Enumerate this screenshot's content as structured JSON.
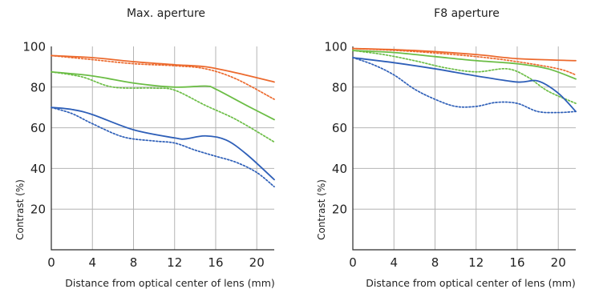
{
  "chart_data": [
    {
      "type": "line",
      "title": "Max. aperture",
      "xlabel": "Distance from optical center of lens (mm)",
      "ylabel": "Contrast (%)",
      "xlim": [
        0,
        21.7
      ],
      "ylim": [
        0,
        100
      ],
      "xticks": [
        "0",
        "4",
        "8",
        "12",
        "16",
        "20"
      ],
      "yticks": [
        "20",
        "40",
        "60",
        "80",
        "100"
      ],
      "grid": true,
      "series": [
        {
          "color": "#ec6a2e",
          "style": "solid",
          "x": [
            0,
            4,
            8,
            12,
            15,
            18,
            21.7
          ],
          "y": [
            95.5,
            94.5,
            92.5,
            91,
            90,
            87,
            82.5
          ]
        },
        {
          "color": "#ec6a2e",
          "style": "dotted",
          "x": [
            0,
            4,
            8,
            12,
            15,
            18,
            21.7
          ],
          "y": [
            95.5,
            93.5,
            91.5,
            90.5,
            89,
            84,
            74
          ]
        },
        {
          "color": "#6bbd45",
          "style": "solid",
          "x": [
            0,
            4,
            8,
            12,
            15,
            16,
            19,
            21.7
          ],
          "y": [
            87.5,
            85.5,
            82,
            80,
            80.5,
            79,
            71,
            64
          ]
        },
        {
          "color": "#6bbd45",
          "style": "dotted",
          "x": [
            0,
            3,
            6,
            10,
            12,
            15,
            18,
            21.7
          ],
          "y": [
            87.5,
            85,
            80,
            79.5,
            78.5,
            71,
            64,
            53
          ]
        },
        {
          "color": "#2e5fb8",
          "style": "solid",
          "x": [
            0,
            2,
            4,
            8,
            12,
            13,
            15,
            17,
            19,
            21.7
          ],
          "y": [
            70,
            69,
            66.5,
            59,
            55,
            54.5,
            56,
            54,
            47,
            34.5
          ]
        },
        {
          "color": "#2e5fb8",
          "style": "dotted",
          "x": [
            0,
            2,
            4,
            7,
            10,
            12,
            14,
            16,
            18,
            20,
            21.7
          ],
          "y": [
            70,
            67,
            62,
            55.5,
            53.5,
            52.5,
            49,
            46,
            43,
            38,
            31
          ]
        }
      ]
    },
    {
      "type": "line",
      "title": "F8 aperture",
      "xlabel": "Distance from optical center of lens (mm)",
      "ylabel": "Contrast (%)",
      "xlim": [
        0,
        21.7
      ],
      "ylim": [
        0,
        100
      ],
      "xticks": [
        "0",
        "4",
        "8",
        "12",
        "16",
        "20"
      ],
      "yticks": [
        "20",
        "40",
        "60",
        "80",
        "100"
      ],
      "grid": true,
      "series": [
        {
          "color": "#ec6a2e",
          "style": "solid",
          "x": [
            0,
            6,
            12,
            16,
            21.7
          ],
          "y": [
            99,
            98,
            96,
            94,
            93
          ]
        },
        {
          "color": "#ec6a2e",
          "style": "dotted",
          "x": [
            0,
            6,
            12,
            16,
            20,
            21.7
          ],
          "y": [
            99,
            97.5,
            95,
            92.5,
            89,
            86
          ]
        },
        {
          "color": "#6bbd45",
          "style": "solid",
          "x": [
            0,
            4,
            8,
            12,
            16,
            19,
            21.7
          ],
          "y": [
            98,
            97,
            95,
            93,
            91.5,
            89,
            84
          ]
        },
        {
          "color": "#6bbd45",
          "style": "dotted",
          "x": [
            0,
            3,
            6,
            9,
            12,
            15,
            17,
            19,
            21.7
          ],
          "y": [
            98,
            96,
            93,
            89.5,
            87.5,
            89,
            85,
            78,
            72
          ]
        },
        {
          "color": "#2e5fb8",
          "style": "solid",
          "x": [
            0,
            4,
            8,
            12,
            16,
            18,
            20,
            21.7
          ],
          "y": [
            94.5,
            92,
            89,
            85.5,
            82.5,
            83,
            77,
            68
          ]
        },
        {
          "color": "#2e5fb8",
          "style": "dotted",
          "x": [
            0,
            2,
            4,
            6,
            8,
            10,
            12,
            14,
            16,
            18,
            20,
            21.7
          ],
          "y": [
            94.5,
            91,
            86,
            79,
            74,
            70.5,
            70.5,
            72.5,
            72,
            68,
            67.5,
            68
          ]
        }
      ]
    }
  ]
}
